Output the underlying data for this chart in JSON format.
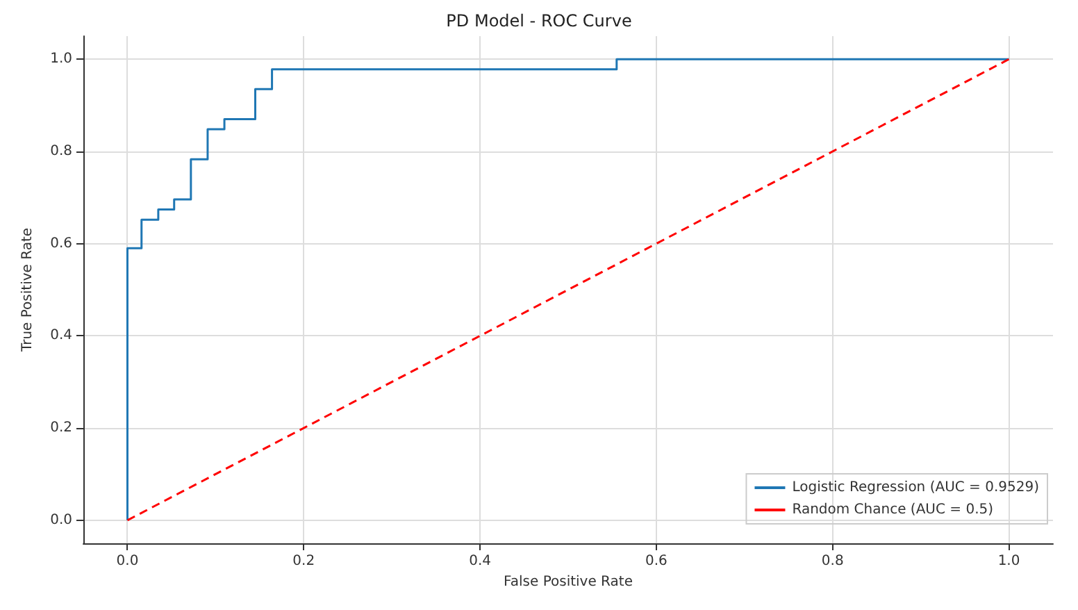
{
  "chart_data": {
    "type": "line",
    "title": "PD Model - ROC Curve",
    "xlabel": "False Positive Rate",
    "ylabel": "True Positive Rate",
    "xlim": [
      -0.05,
      1.05
    ],
    "ylim": [
      -0.05,
      1.05
    ],
    "xticks": [
      {
        "value": 0,
        "label": "0.0"
      },
      {
        "value": 0.2,
        "label": "0.2"
      },
      {
        "value": 0.4,
        "label": "0.4"
      },
      {
        "value": 0.6,
        "label": "0.6"
      },
      {
        "value": 0.8,
        "label": "0.8"
      },
      {
        "value": 1,
        "label": "1.0"
      }
    ],
    "yticks": [
      {
        "value": 0,
        "label": "0.0"
      },
      {
        "value": 0.2,
        "label": "0.2"
      },
      {
        "value": 0.4,
        "label": "0.4"
      },
      {
        "value": 0.6,
        "label": "0.6"
      },
      {
        "value": 0.8,
        "label": "0.8"
      },
      {
        "value": 1,
        "label": "1.0"
      }
    ],
    "grid": true,
    "legend": "bottom right",
    "marker": "none",
    "series": [
      {
        "name": "Logistic Regression (AUC = 0.9529)",
        "color": "#1f77b4",
        "line_style": "solid",
        "x": [
          0,
          0,
          0.016,
          0.016,
          0.035,
          0.035,
          0.053,
          0.053,
          0.072,
          0.072,
          0.091,
          0.091,
          0.11,
          0.11,
          0.145,
          0.145,
          0.164,
          0.164,
          0.555,
          0.555,
          1.0
        ],
        "values": [
          0,
          0.59,
          0.59,
          0.652,
          0.652,
          0.674,
          0.674,
          0.696,
          0.696,
          0.783,
          0.783,
          0.848,
          0.848,
          0.87,
          0.87,
          0.935,
          0.935,
          0.978,
          0.978,
          1.0,
          1.0
        ]
      },
      {
        "name": "Random Chance (AUC = 0.5)",
        "color": "#ff0000",
        "line_style": "dashed",
        "x": [
          0,
          1
        ],
        "values": [
          0,
          1
        ]
      }
    ]
  }
}
